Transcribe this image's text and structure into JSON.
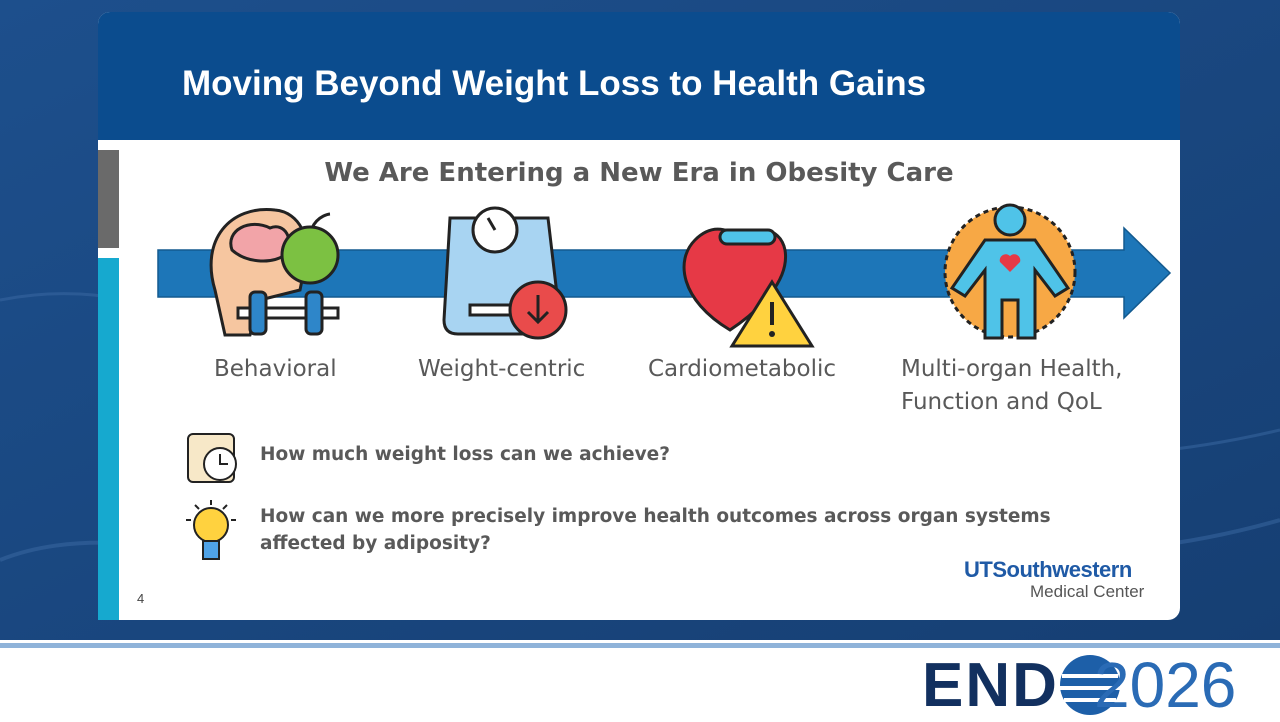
{
  "header": {
    "title": "Moving Beyond Weight Loss to Health Gains"
  },
  "subtitle": "We Are Entering a New Era in Obesity Care",
  "stages": [
    "Behavioral",
    "Weight-centric",
    "Cardiometabolic",
    "Multi-organ Health, Function and QoL"
  ],
  "questions": [
    "How much weight loss can we achieve?",
    "How can we more precisely improve health outcomes across organ systems affected by adiposity?"
  ],
  "logo": {
    "brand": "UTSouthwestern",
    "subtitle": "Medical Center"
  },
  "page_number": "4",
  "footer": {
    "endo_left": "END",
    "endo_right": "2026"
  }
}
